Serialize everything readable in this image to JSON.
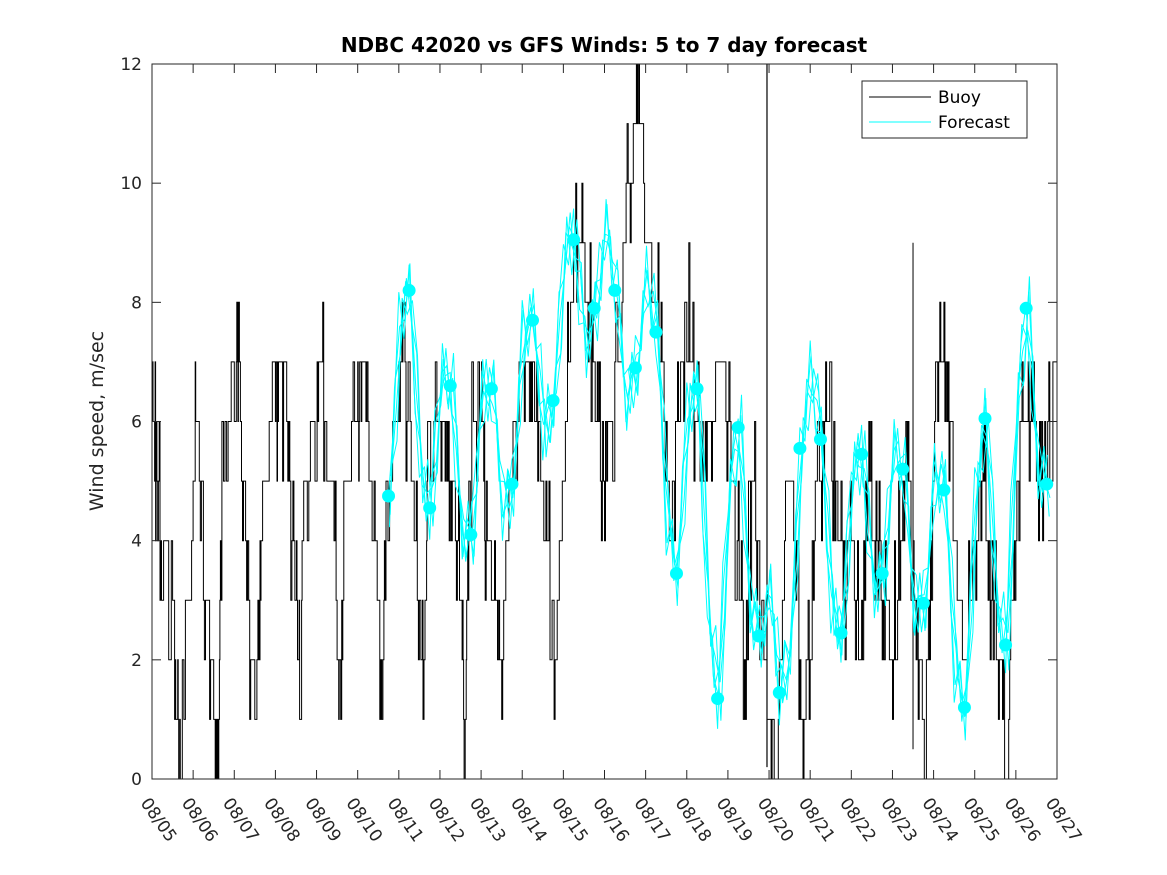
{
  "chart_data": {
    "type": "line",
    "title": "NDBC 42020 vs GFS Winds: 5 to 7 day forecast",
    "xlabel": "",
    "ylabel": "Wind speed, m/sec",
    "xlim": [
      0,
      22
    ],
    "ylim": [
      0,
      12
    ],
    "grid": false,
    "legend_position": "top-right",
    "x_tick_labels": [
      "08/05",
      "08/06",
      "08/07",
      "08/08",
      "08/09",
      "08/10",
      "08/11",
      "08/12",
      "08/13",
      "08/14",
      "08/15",
      "08/16",
      "08/17",
      "08/18",
      "08/19",
      "08/20",
      "08/21",
      "08/22",
      "08/23",
      "08/24",
      "08/25",
      "08/26",
      "08/27"
    ],
    "y_ticks": [
      0,
      2,
      4,
      6,
      8,
      10,
      12
    ],
    "y_tick_labels": [
      "0",
      "2",
      "4",
      "6",
      "8",
      "10",
      "12"
    ],
    "series": [
      {
        "name": "Buoy",
        "color": "#000000",
        "x_days_since_0805": [
          0,
          0.1,
          0.25,
          0.5,
          0.6,
          0.7,
          1.0,
          1.1,
          1.3,
          1.5,
          1.6,
          1.7,
          2.0,
          2.1,
          2.3,
          2.5,
          2.6,
          2.7,
          3.0,
          3.1,
          3.3,
          3.5,
          3.6,
          3.7,
          4.0,
          4.1,
          4.3,
          4.5,
          4.6,
          4.7,
          5.0,
          5.1,
          5.3,
          5.5,
          5.6,
          5.7,
          6.0,
          6.1,
          6.3,
          6.5,
          6.6,
          6.7,
          7.0,
          7.1,
          7.3,
          7.5,
          7.6,
          7.7,
          8.0,
          8.1,
          8.3,
          8.5,
          8.7,
          9.0,
          9.2,
          9.4,
          9.6,
          9.8,
          10.0,
          10.2,
          10.4,
          10.6,
          10.8,
          11.0,
          11.2,
          11.4,
          11.6,
          11.8,
          12.0,
          12.2,
          12.4,
          12.6,
          12.8,
          13.0,
          13.2,
          13.4,
          13.6,
          13.8,
          14.0,
          14.2,
          14.4,
          14.6,
          14.8,
          15.0,
          15.2,
          15.4,
          15.6,
          15.8,
          16.0,
          16.2,
          16.4,
          16.6,
          16.8,
          17.0,
          17.2,
          17.4,
          17.6,
          17.8,
          18.0,
          18.2,
          18.4,
          18.6,
          18.8,
          19.0,
          19.2,
          19.4,
          19.6,
          19.8,
          20.0,
          20.2,
          20.4,
          20.6,
          20.8,
          21.0,
          21.2,
          21.4,
          21.6,
          21.8,
          22.0
        ],
        "values": [
          7,
          5,
          4,
          3,
          1,
          0,
          5,
          6,
          3,
          1,
          0,
          5,
          6,
          7,
          3,
          1,
          2,
          5,
          6,
          7,
          5,
          3,
          1,
          5,
          6,
          7,
          5,
          3,
          1,
          5,
          6,
          7,
          5,
          3,
          1,
          5,
          6,
          7,
          5,
          3,
          1,
          5,
          6,
          6,
          5,
          3,
          0,
          5,
          7,
          4,
          3,
          2,
          5,
          7,
          7,
          5,
          4,
          2,
          5,
          8,
          9,
          8,
          6,
          5,
          6,
          8,
          10,
          11,
          9,
          8,
          7,
          4,
          6,
          8,
          6,
          5,
          6,
          7,
          6,
          4,
          2,
          5,
          3,
          1,
          0,
          5,
          4,
          1,
          2,
          5,
          6,
          5,
          3,
          4,
          2,
          5,
          4,
          3,
          2,
          4,
          5,
          2,
          1,
          5,
          7,
          5,
          3,
          2,
          4,
          5,
          3,
          2,
          0,
          5,
          6,
          6,
          5,
          6,
          7
        ]
      },
      {
        "name": "Forecast",
        "color": "#00ffff",
        "markers_x_days_since_0805": [
          5.75,
          6.25,
          6.75,
          7.25,
          7.75,
          8.25,
          8.75,
          9.25,
          9.75,
          10.25,
          10.75,
          11.25,
          11.75,
          12.25,
          12.75,
          13.25,
          13.75,
          14.25,
          14.75,
          15.25,
          15.75,
          16.25,
          16.75,
          17.25,
          17.75,
          18.25,
          18.75,
          19.25,
          19.75,
          20.25,
          20.75,
          21.25,
          21.75
        ],
        "marker_values": [
          4.75,
          8.2,
          4.55,
          6.6,
          4.1,
          6.55,
          4.95,
          7.7,
          6.35,
          9.05,
          7.9,
          8.2,
          6.9,
          7.5,
          3.45,
          6.55,
          1.35,
          5.9,
          2.4,
          1.45,
          5.55,
          5.7,
          2.45,
          5.45,
          3.45,
          5.2,
          2.95,
          4.85,
          1.2,
          6.05,
          2.25,
          7.9,
          4.95
        ]
      }
    ]
  }
}
